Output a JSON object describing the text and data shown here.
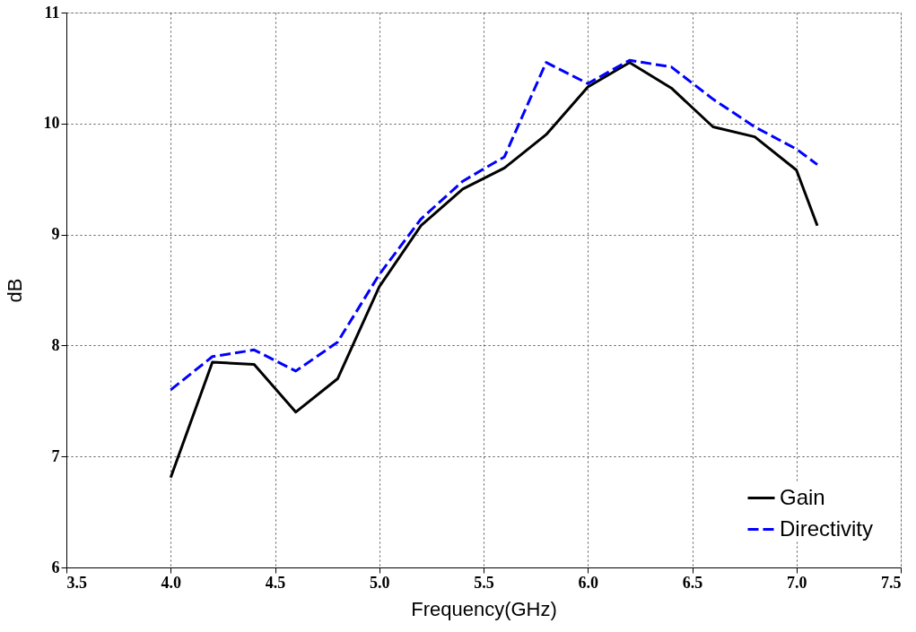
{
  "chart_data": {
    "type": "line",
    "xlabel": "Frequency(GHz)",
    "ylabel": "dB",
    "xlim": [
      3.5,
      7.5
    ],
    "xticks": [
      {
        "value": 3.5,
        "label": "3.5"
      },
      {
        "value": 4,
        "label": "4.0"
      },
      {
        "value": 4.5,
        "label": "4.5"
      },
      {
        "value": 5,
        "label": "5.0"
      },
      {
        "value": 5.5,
        "label": "5.5"
      },
      {
        "value": 6,
        "label": "6.0"
      },
      {
        "value": 6.5,
        "label": "6.5"
      },
      {
        "value": 7,
        "label": "7.0"
      },
      {
        "value": 7.5,
        "label": "7.5"
      }
    ],
    "ylim": [
      6,
      11
    ],
    "yticks": [
      6,
      7,
      8,
      9,
      10,
      11
    ],
    "x": [
      4.0,
      4.2,
      4.4,
      4.6,
      4.8,
      5.0,
      5.2,
      5.4,
      5.6,
      5.8,
      6.0,
      6.2,
      6.4,
      6.6,
      6.8,
      7.0,
      7.1
    ],
    "series": [
      {
        "name": "Gain",
        "color": "#000000",
        "line_style": "solid",
        "values": [
          6.81,
          7.85,
          7.83,
          7.4,
          7.7,
          8.53,
          9.08,
          9.41,
          9.6,
          9.9,
          10.33,
          10.55,
          10.32,
          9.97,
          9.88,
          9.58,
          9.08
        ]
      },
      {
        "name": "Directivity",
        "color": "#0000ff",
        "line_style": "dashed",
        "values": [
          7.6,
          7.9,
          7.96,
          7.77,
          8.03,
          8.64,
          9.14,
          9.48,
          9.7,
          10.55,
          10.36,
          10.57,
          10.51,
          10.22,
          9.97,
          9.77,
          9.63
        ]
      }
    ],
    "grid": true,
    "legend": "bottom right",
    "marker": "none"
  }
}
